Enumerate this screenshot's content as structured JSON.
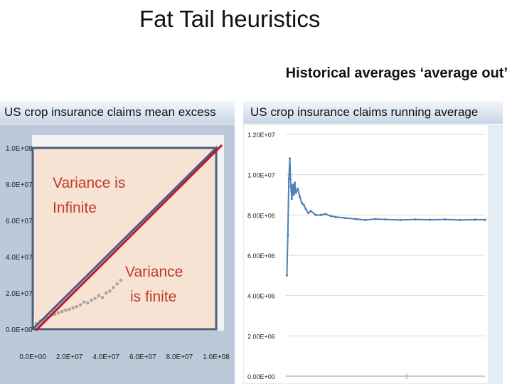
{
  "slide": {
    "title": "Fat Tail heuristics",
    "subtitle": "Historical averages ‘average out’"
  },
  "panels": {
    "left_title": "US crop insurance claims mean excess",
    "right_title": "US crop insurance claims running average"
  },
  "annotations": {
    "infinite": [
      "Variance is",
      "Infinite"
    ],
    "finite": [
      "Variance",
      "is finite"
    ]
  },
  "colors": {
    "header_gradient_top": "#f4f7fb",
    "header_gradient_bottom": "#c9d6e6",
    "left_panel_bg": "#bcc9d8",
    "shaded_region": "#f7e3d4",
    "frame_blue": "#4a5f7e",
    "diagonal_red": "#c8102e",
    "scatter_gray": "#a6a6a6",
    "running_avg_blue": "#4f7fb4"
  },
  "chart_data": [
    {
      "type": "scatter",
      "title": "",
      "x_ticks": [
        "0.0E+00",
        "2.0E+07",
        "4.0E+07",
        "6.0E+07",
        "8.0E+07",
        "1.0E+08"
      ],
      "y_ticks": [
        "0.0E+00",
        "2.0E+07",
        "4.0E+07",
        "6.0E+07",
        "8.0E+07",
        "1.0E+08"
      ],
      "xlim": [
        0,
        100000000
      ],
      "ylim": [
        0,
        100000000
      ],
      "grid": false,
      "series": [
        {
          "x": [
            2000000,
            4000000,
            6000000,
            8000000,
            10000000,
            12000000,
            14000000,
            16000000,
            18000000,
            20000000,
            22000000,
            24000000,
            26000000,
            28000000,
            30000000,
            32000000,
            34000000,
            36000000,
            38000000,
            40000000,
            42000000,
            44000000,
            46000000,
            48000000
          ],
          "y": [
            3000000,
            4500000,
            5500000,
            6500000,
            7500000,
            8200000,
            9000000,
            9800000,
            10500000,
            11000000,
            11800000,
            12500000,
            13500000,
            15000000,
            14500000,
            16000000,
            17000000,
            18500000,
            17500000,
            20000000,
            21000000,
            23000000,
            25000000,
            27000000
          ]
        }
      ],
      "reference_line": {
        "x": [
          0,
          100000000
        ],
        "y": [
          0,
          100000000
        ]
      }
    },
    {
      "type": "line",
      "title": "",
      "y_ticks": [
        "0.00E+00",
        "2.00E+06",
        "4.00E+06",
        "6.00E+06",
        "8.00E+06",
        "1.00E+07",
        "1.20E+07"
      ],
      "ylim": [
        0,
        12000000
      ],
      "grid": true,
      "series": [
        {
          "x": [
            2,
            4,
            6,
            8,
            10,
            12,
            14,
            16,
            18,
            20,
            24,
            28,
            32,
            36,
            40,
            45,
            50,
            60,
            70,
            80,
            90,
            100,
            120,
            140,
            160,
            180,
            200,
            230,
            260,
            290,
            320,
            350,
            380,
            400
          ],
          "y": [
            5000000,
            7000000,
            9800000,
            10800000,
            9400000,
            8800000,
            9500000,
            9000000,
            9600000,
            9100000,
            9300000,
            8900000,
            8600000,
            8500000,
            8300000,
            8100000,
            8200000,
            8000000,
            8000000,
            8050000,
            7950000,
            7900000,
            7850000,
            7800000,
            7750000,
            7800000,
            7780000,
            7750000,
            7780000,
            7760000,
            7780000,
            7750000,
            7770000,
            7760000
          ]
        }
      ]
    }
  ]
}
